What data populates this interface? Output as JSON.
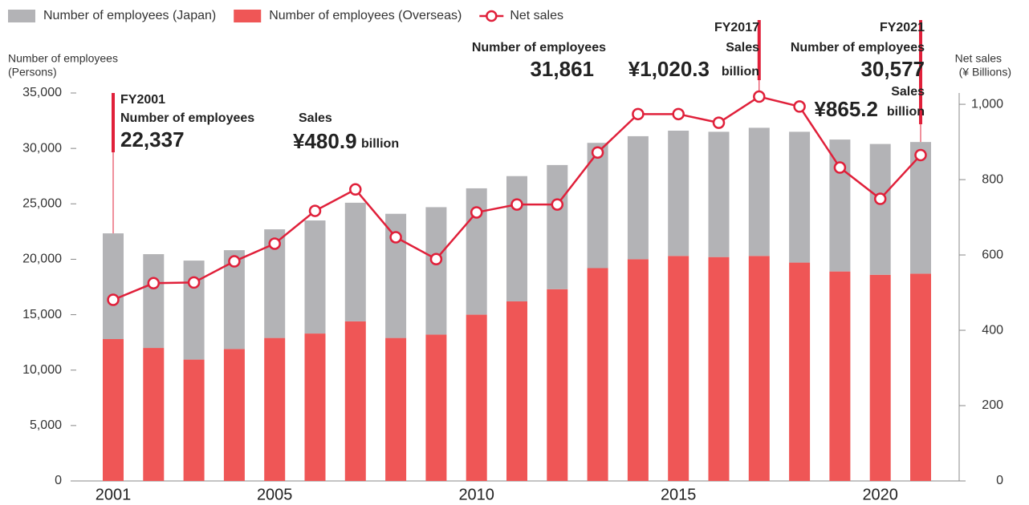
{
  "chart_data": {
    "type": "bar-line",
    "categories": [
      "2001",
      null,
      null,
      null,
      "2005",
      null,
      null,
      null,
      null,
      "2010",
      null,
      null,
      null,
      null,
      "2015",
      null,
      null,
      null,
      null,
      "2020",
      null
    ],
    "series": [
      {
        "name": "Number of employees (Overseas)",
        "color": "#ef5656",
        "values": [
          12800,
          12000,
          10950,
          11900,
          12900,
          13300,
          14400,
          12900,
          13200,
          15000,
          16200,
          17300,
          19200,
          20000,
          20300,
          20200,
          20300,
          19700,
          18900,
          18600,
          18700
        ]
      },
      {
        "name": "Number of employees (Japan)",
        "color": "#b3b3b6",
        "values": [
          9537,
          8460,
          8930,
          8920,
          9800,
          10200,
          10700,
          11200,
          11500,
          11400,
          11300,
          11200,
          11300,
          11100,
          11300,
          11300,
          11561,
          11800,
          11900,
          11800,
          11877
        ]
      },
      {
        "name": "Net sales",
        "color": "#e0203a",
        "axis": "y2",
        "values": [
          480.9,
          525,
          527,
          583,
          630,
          717,
          774,
          647,
          589,
          713,
          734,
          734,
          872,
          974,
          974,
          951,
          1020.3,
          994,
          832,
          749,
          865.2
        ]
      }
    ],
    "legend_order": [
      1,
      0,
      2
    ],
    "ylim": [
      0,
      35000
    ],
    "yticks": [
      0,
      {
        "value": 5000,
        "label": "5,000"
      },
      {
        "value": 10000,
        "label": "10,000"
      },
      {
        "value": 15000,
        "label": "15,000"
      },
      {
        "value": 20000,
        "label": "20,000"
      },
      {
        "value": 25000,
        "label": "25,000"
      },
      {
        "value": 30000,
        "label": "30,000"
      },
      {
        "value": 35000,
        "label": "35,000"
      }
    ],
    "y2lim": [
      0,
      1030
    ],
    "y2ticks": [
      0,
      200,
      400,
      600,
      800,
      {
        "value": 1000,
        "label": "1,000"
      }
    ],
    "y_label": [
      "Number of employees",
      "(Persons)"
    ],
    "y2_label": [
      "Net sales",
      "(¥ Billions)"
    ],
    "annotations": [
      {
        "index": 0,
        "lines": [
          "FY2001",
          "Number of employees",
          "22,337",
          "Sales",
          "¥480.9",
          "billion"
        ]
      },
      {
        "index": 16,
        "lines": [
          "FY2017",
          "Sales",
          "Number of employees",
          "31,861",
          "¥1,020.3",
          "billion"
        ]
      },
      {
        "index": 20,
        "lines": [
          "FY2021",
          "Number of employees",
          "30,577",
          "Sales",
          "¥865.2",
          "billion"
        ]
      }
    ]
  }
}
